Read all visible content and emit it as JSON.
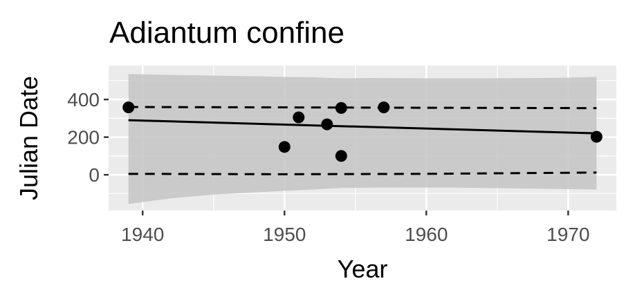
{
  "chart_data": {
    "type": "scatter",
    "title": "Adiantum confine",
    "xlabel": "Year",
    "ylabel": "Julian Date",
    "xlim": [
      1937.6,
      1973.4
    ],
    "ylim": [
      -190,
      580
    ],
    "x_ticks": [
      1940,
      1950,
      1960,
      1970
    ],
    "y_ticks": [
      0,
      200,
      400
    ],
    "grid": true,
    "legend": "none",
    "colors": {
      "panel": "#ebebeb",
      "grid": "#ffffff",
      "ribbon": "#c4c4c4",
      "points": "#000000",
      "ticks": "#4d4d4d"
    },
    "points": [
      {
        "x": 1939,
        "y": 358
      },
      {
        "x": 1950,
        "y": 148
      },
      {
        "x": 1951,
        "y": 305
      },
      {
        "x": 1953,
        "y": 268
      },
      {
        "x": 1954,
        "y": 355
      },
      {
        "x": 1954,
        "y": 100
      },
      {
        "x": 1957,
        "y": 358
      },
      {
        "x": 1972,
        "y": 202
      }
    ],
    "trend_line": {
      "x": [
        1939,
        1972
      ],
      "y": [
        290,
        220
      ]
    },
    "upper_band": {
      "x": [
        1939,
        1950,
        1960,
        1972
      ],
      "y": [
        360,
        358,
        356,
        354
      ]
    },
    "lower_band": {
      "x": [
        1939,
        1950,
        1960,
        1972
      ],
      "y": [
        5,
        3,
        5,
        12
      ]
    },
    "ribbon": {
      "x": [
        1939,
        1942,
        1945,
        1948,
        1950,
        1952,
        1954,
        1956,
        1958,
        1960,
        1962,
        1964,
        1966,
        1968,
        1970,
        1972
      ],
      "upper": [
        535,
        530,
        527,
        523,
        520,
        518,
        512,
        514,
        513,
        512,
        512,
        512,
        513,
        514,
        516,
        520
      ],
      "lower": [
        -155,
        -125,
        -105,
        -93,
        -85,
        -78,
        -70,
        -68,
        -68,
        -68,
        -68,
        -70,
        -72,
        -74,
        -76,
        -78
      ]
    }
  }
}
